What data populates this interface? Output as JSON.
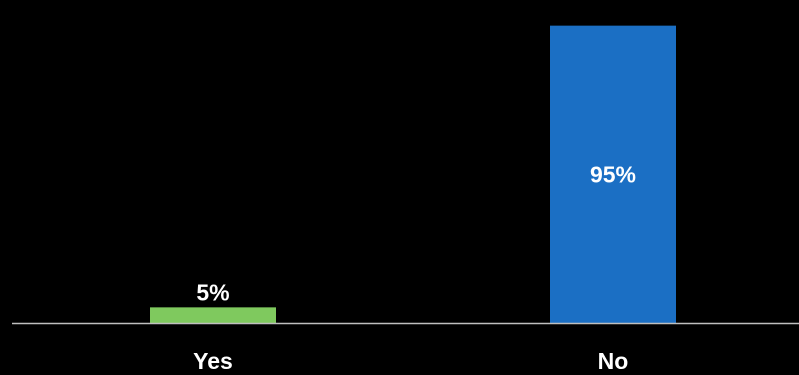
{
  "chart_data": {
    "type": "bar",
    "categories": [
      "Yes",
      "No"
    ],
    "values": [
      5,
      95
    ],
    "data_labels": [
      "5%",
      "95%"
    ],
    "colors": [
      "#7fc95e",
      "#1b6fc4"
    ],
    "ylim": [
      0,
      100
    ],
    "grid": false,
    "legend": "none",
    "baseline_color": "#bfbfbf",
    "title": "",
    "xlabel": "",
    "ylabel": ""
  }
}
